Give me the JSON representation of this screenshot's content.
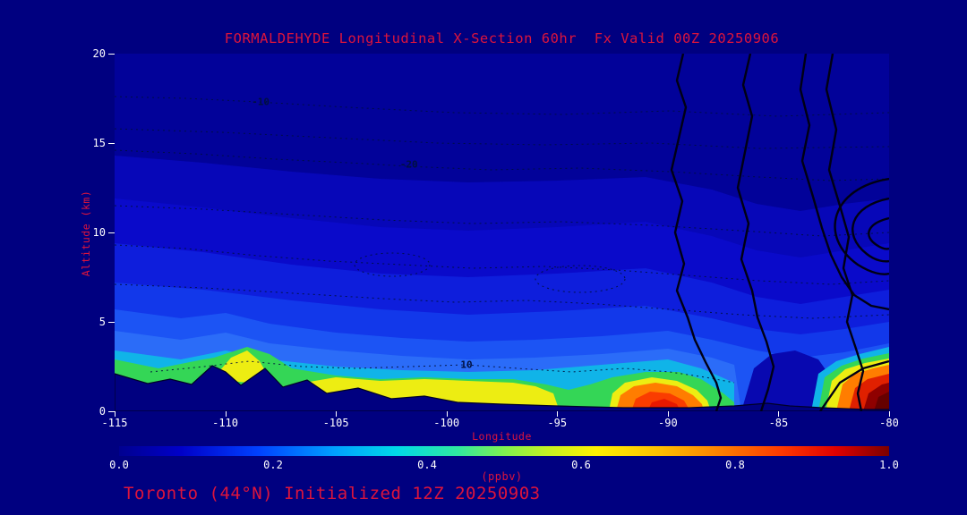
{
  "colors": {
    "background": "#000080",
    "accent_text": "#DC143C",
    "tick_text": "#FFFFFF",
    "contour_label": "#001040"
  },
  "header": {
    "title": "FORMALDEHYDE Longitudinal X-Section 60hr  Fx Valid 00Z 20250906"
  },
  "footer": {
    "caption": "Toronto (44°N) Initialized 12Z 20250903"
  },
  "axes": {
    "x": {
      "label": "Longitude",
      "min": -115,
      "max": -80,
      "ticks": [
        -115,
        -110,
        -105,
        -100,
        -95,
        -90,
        -85,
        -80
      ]
    },
    "y": {
      "label": "Altitude (km)",
      "min": 0,
      "max": 20,
      "ticks": [
        0,
        5,
        10,
        15,
        20
      ]
    }
  },
  "colorbar": {
    "unit_label": "(ppbv)",
    "min": 0,
    "max": 1,
    "ticks": [
      "0.0",
      "0.2",
      "0.4",
      "0.6",
      "0.8",
      "1.0"
    ],
    "stops": [
      [
        0,
        "#000090"
      ],
      [
        0.08,
        "#0000C8"
      ],
      [
        0.18,
        "#0040FF"
      ],
      [
        0.28,
        "#00A0FF"
      ],
      [
        0.36,
        "#00D8E8"
      ],
      [
        0.44,
        "#30E8A0"
      ],
      [
        0.5,
        "#80F050"
      ],
      [
        0.56,
        "#C8F020"
      ],
      [
        0.62,
        "#FFF000"
      ],
      [
        0.7,
        "#FFC000"
      ],
      [
        0.78,
        "#FF8000"
      ],
      [
        0.86,
        "#FF3800"
      ],
      [
        0.93,
        "#E00000"
      ],
      [
        1,
        "#7A0000"
      ]
    ]
  },
  "contour_labels": [
    {
      "text": "-10",
      "lon": -108.4,
      "alt_km": 17.3
    },
    {
      "text": "-20",
      "lon": -101.7,
      "alt_km": 13.8
    },
    {
      "text": "10",
      "lon": -99.1,
      "alt_km": 2.6
    }
  ],
  "chart_data": {
    "type": "heatmap",
    "title": "FORMALDEHYDE Longitudinal X-Section 60hr  Fx Valid 00Z 20250906",
    "xlabel": "Longitude",
    "ylabel": "Altitude (km)",
    "xlim": [
      -115,
      -80
    ],
    "ylim": [
      0,
      20
    ],
    "colorbar_label": "(ppbv)",
    "colorbar_range": [
      0.0,
      1.0
    ],
    "colorbar_ticks": [
      0.0,
      0.2,
      0.4,
      0.6,
      0.8,
      1.0
    ],
    "grid": {
      "longitudes": [
        -115,
        -110,
        -105,
        -100,
        -95,
        -90,
        -85,
        -80
      ],
      "altitudes_km": [
        0.5,
        1,
        2,
        3,
        4,
        6,
        8,
        10,
        12,
        14,
        16,
        18,
        20
      ],
      "values_ppbv": [
        [
          0.35,
          0.55,
          0.55,
          0.5,
          0.35,
          0.85,
          0.45,
          1.0
        ],
        [
          0.35,
          0.5,
          0.5,
          0.45,
          0.3,
          0.8,
          0.4,
          0.95
        ],
        [
          0.3,
          0.5,
          0.35,
          0.3,
          0.25,
          0.4,
          0.3,
          0.75
        ],
        [
          0.3,
          0.45,
          0.3,
          0.25,
          0.22,
          0.3,
          0.22,
          0.4
        ],
        [
          0.28,
          0.3,
          0.25,
          0.22,
          0.2,
          0.25,
          0.18,
          0.25
        ],
        [
          0.2,
          0.18,
          0.16,
          0.15,
          0.15,
          0.16,
          0.12,
          0.12
        ],
        [
          0.14,
          0.13,
          0.12,
          0.11,
          0.11,
          0.12,
          0.09,
          0.09
        ],
        [
          0.1,
          0.1,
          0.09,
          0.08,
          0.08,
          0.09,
          0.07,
          0.07
        ],
        [
          0.08,
          0.07,
          0.06,
          0.06,
          0.06,
          0.07,
          0.05,
          0.05
        ],
        [
          0.05,
          0.05,
          0.04,
          0.04,
          0.04,
          0.05,
          0.04,
          0.04
        ],
        [
          0.03,
          0.03,
          0.03,
          0.03,
          0.03,
          0.03,
          0.03,
          0.03
        ],
        [
          0.02,
          0.02,
          0.02,
          0.02,
          0.02,
          0.02,
          0.02,
          0.02
        ],
        [
          0.02,
          0.02,
          0.02,
          0.02,
          0.02,
          0.02,
          0.02,
          0.02
        ]
      ]
    },
    "terrain_profile": {
      "longitudes": [
        -115,
        -113.5,
        -111.5,
        -110.6,
        -109.3,
        -108.2,
        -107.4,
        -106.3,
        -105.4,
        -104,
        -102.5,
        -101,
        -99.5,
        -97.5,
        -95,
        -92,
        -89,
        -87,
        -85.5,
        -83,
        -81,
        -80
      ],
      "elevation_km": [
        2.1,
        1.55,
        1.5,
        2.55,
        1.45,
        2.4,
        1.35,
        1.75,
        1.0,
        1.3,
        0.7,
        0.85,
        0.5,
        0.4,
        0.3,
        0.22,
        0.18,
        0.3,
        0.45,
        0.2,
        0.12,
        0.1
      ]
    },
    "overlays": {
      "dashed_contour_labels_visible": [
        -10,
        -20,
        10
      ],
      "solid_contours": "thick unlabeled black contours over eastern section (-90 to -80), with closed nested loops near right edge at 9-14 km"
    },
    "annotations": {
      "cross_section_latitude": "44N (Toronto)",
      "forecast_hour": "60hr",
      "valid_time": "00Z 20250906",
      "init_time": "12Z 20250903"
    }
  }
}
